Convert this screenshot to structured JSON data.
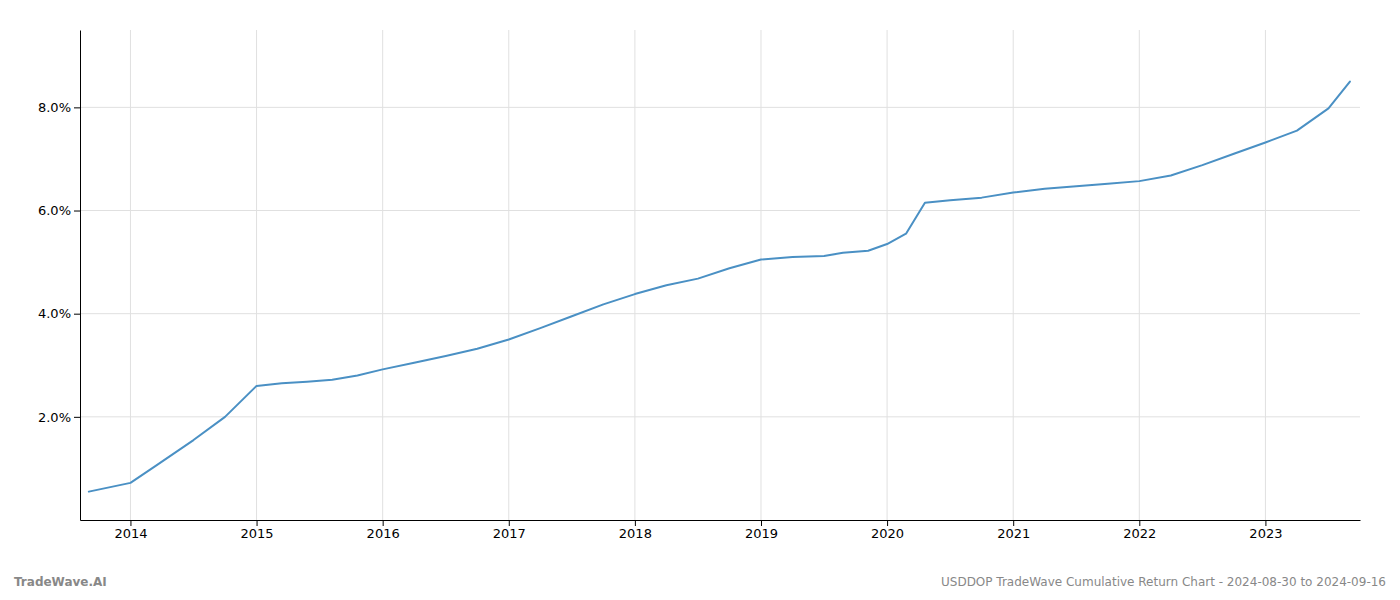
{
  "chart_data": {
    "type": "line",
    "x": [
      2013.67,
      2014.0,
      2014.2,
      2014.5,
      2014.75,
      2015.0,
      2015.2,
      2015.4,
      2015.6,
      2015.8,
      2016.0,
      2016.25,
      2016.5,
      2016.75,
      2017.0,
      2017.25,
      2017.5,
      2017.75,
      2018.0,
      2018.25,
      2018.5,
      2018.75,
      2019.0,
      2019.25,
      2019.5,
      2019.65,
      2019.85,
      2020.0,
      2020.15,
      2020.3,
      2020.5,
      2020.75,
      2021.0,
      2021.25,
      2021.5,
      2021.75,
      2022.0,
      2022.25,
      2022.5,
      2022.75,
      2023.0,
      2023.25,
      2023.5,
      2023.67
    ],
    "values": [
      0.55,
      0.72,
      1.05,
      1.55,
      2.0,
      2.6,
      2.65,
      2.68,
      2.72,
      2.8,
      2.92,
      3.05,
      3.18,
      3.32,
      3.5,
      3.72,
      3.95,
      4.18,
      4.38,
      4.55,
      4.68,
      4.88,
      5.05,
      5.1,
      5.12,
      5.18,
      5.22,
      5.35,
      5.55,
      6.15,
      6.2,
      6.25,
      6.35,
      6.42,
      6.47,
      6.52,
      6.57,
      6.68,
      6.88,
      7.1,
      7.32,
      7.55,
      7.98,
      8.5
    ],
    "color": "#4a90c4",
    "xlim": [
      2013.6,
      2023.75
    ],
    "ylim": [
      0.0,
      9.5
    ],
    "xticks": [
      2014,
      2015,
      2016,
      2017,
      2018,
      2019,
      2020,
      2021,
      2022,
      2023
    ],
    "yticks": [
      {
        "value": 2.0,
        "label": "2.0%"
      },
      {
        "value": 4.0,
        "label": "4.0%"
      },
      {
        "value": 6.0,
        "label": "6.0%"
      },
      {
        "value": 8.0,
        "label": "8.0%"
      }
    ],
    "grid": true,
    "annotations": [
      "TradeWave.AI",
      "USDDOP TradeWave Cumulative Return Chart - 2024-08-30 to 2024-09-16"
    ]
  }
}
